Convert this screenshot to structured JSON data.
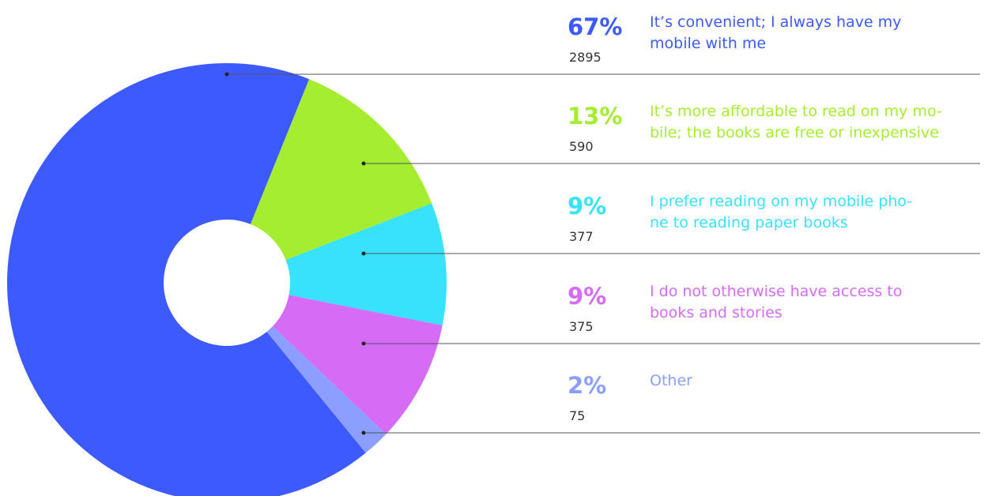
{
  "chart_data": {
    "type": "donut",
    "categories": [
      [
        "It’s convenient; I always have my",
        "mobile with me"
      ],
      [
        "It’s more affordable to read on my mo-",
        "bile; the books are free or inexpensive"
      ],
      [
        "I prefer reading on my mobile pho-",
        "ne to reading paper books"
      ],
      [
        "I do not otherwise have access to",
        "books and stories"
      ],
      [
        "Other"
      ]
    ],
    "values": [
      67,
      13,
      9,
      9,
      2
    ],
    "value_labels": [
      "67%",
      "13%",
      "9%",
      "9%",
      "2%"
    ],
    "counts": [
      2895,
      590,
      377,
      375,
      75
    ],
    "colors": [
      "#3d5afe",
      "#a5ed30",
      "#38e1fc",
      "#d66cf5",
      "#8c9eff"
    ]
  }
}
